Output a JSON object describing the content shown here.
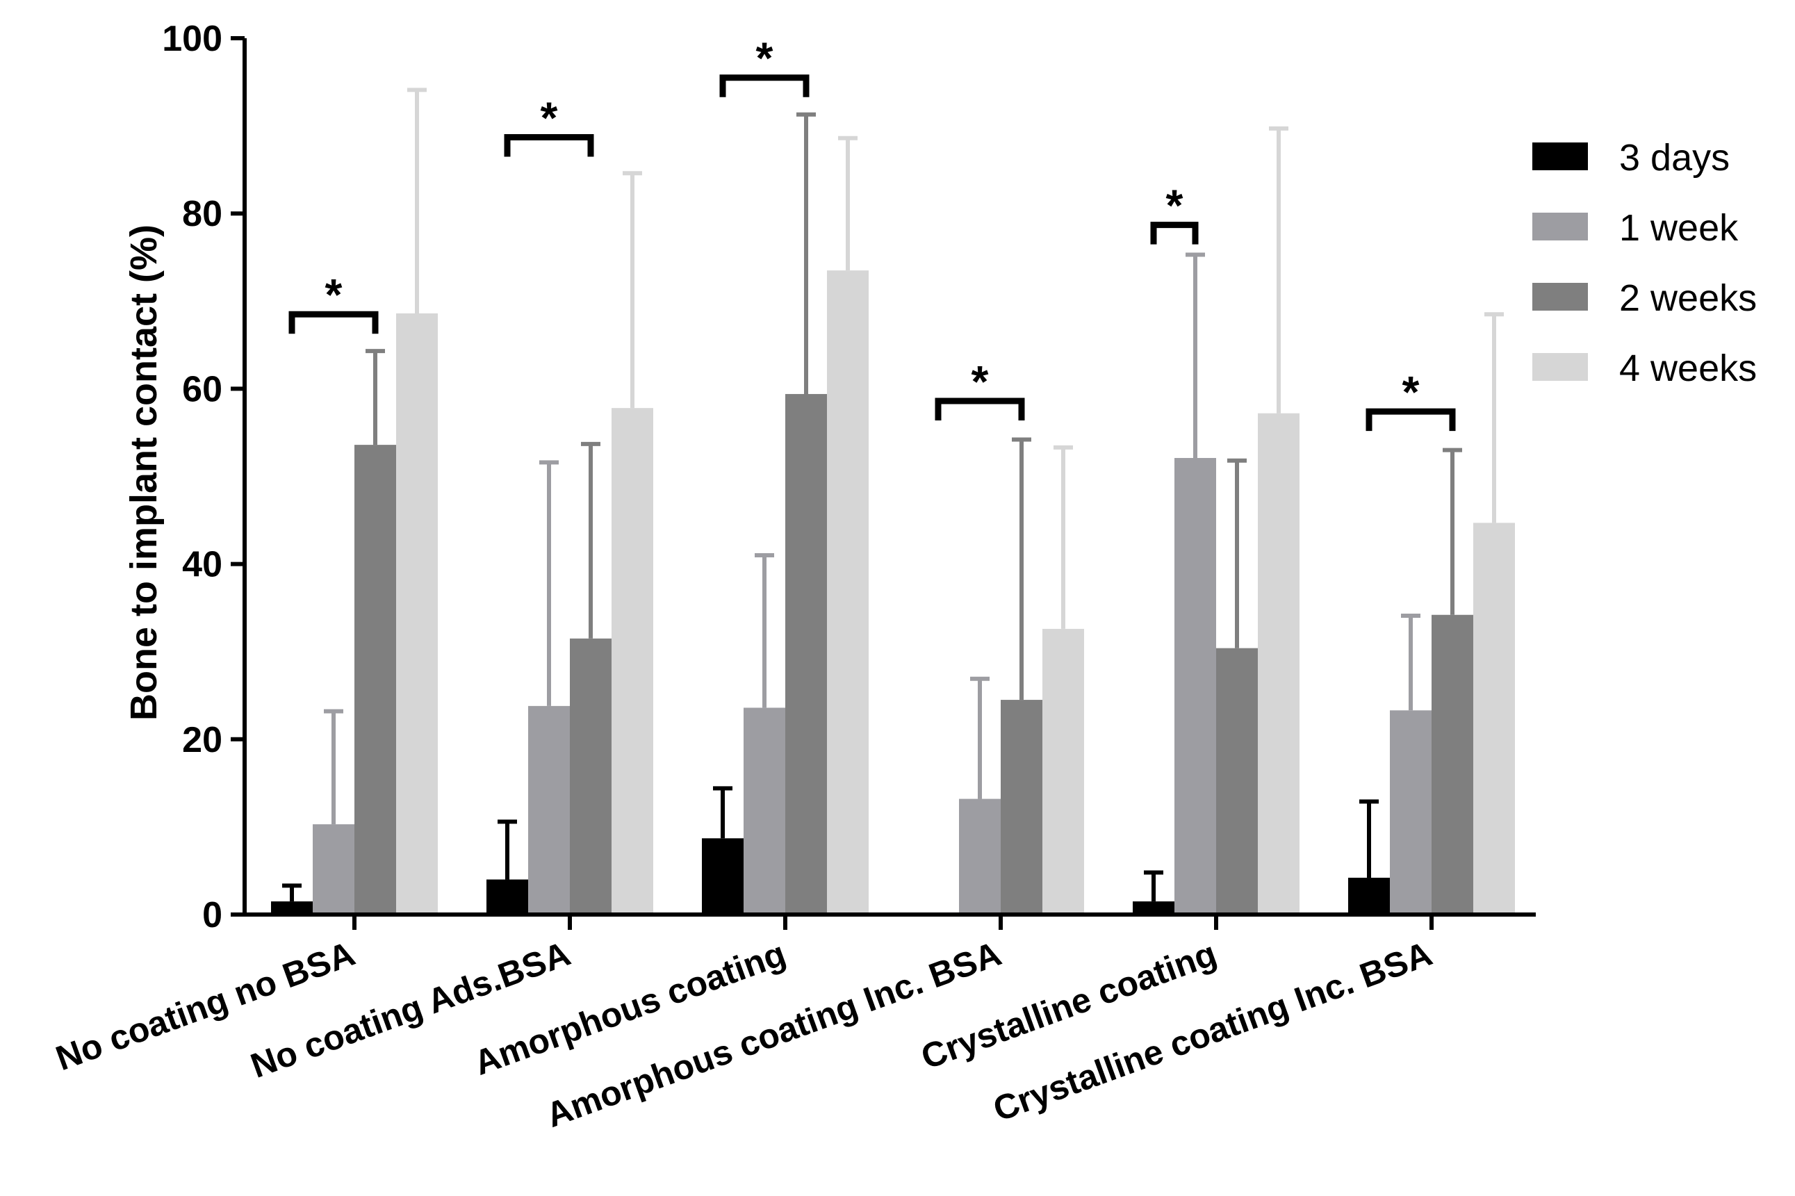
{
  "chart_data": {
    "type": "bar",
    "title": "",
    "xlabel": "",
    "ylabel": "Bone to implant contact (%)",
    "ylim": [
      0,
      100
    ],
    "yticks": [
      "0",
      "20",
      "40",
      "60",
      "80",
      "100"
    ],
    "grid": false,
    "legend_position": "right",
    "categories": [
      "No coating no BSA",
      "No coating Ads.BSA",
      "Amorphous coating",
      "Amorphous coating Inc. BSA",
      "Crystalline coating",
      "Crystalline coating Inc. BSA"
    ],
    "series": [
      {
        "name": "3 days",
        "color": "#000000",
        "values": [
          1.5,
          4.0,
          8.7,
          0.0,
          1.5,
          4.2
        ],
        "errors": [
          1.8,
          6.6,
          5.7,
          0.0,
          3.3,
          8.7
        ]
      },
      {
        "name": "1 week",
        "color": "#9d9da2",
        "values": [
          10.3,
          23.8,
          23.6,
          13.2,
          52.1,
          23.3
        ],
        "errors": [
          12.9,
          27.8,
          17.4,
          13.7,
          23.2,
          10.8
        ]
      },
      {
        "name": "2 weeks",
        "color": "#7f7f7f",
        "values": [
          53.6,
          31.5,
          59.4,
          24.5,
          30.4,
          34.2
        ],
        "errors": [
          10.7,
          22.2,
          31.9,
          29.7,
          21.4,
          18.8
        ]
      },
      {
        "name": "4 weeks",
        "color": "#d6d6d6",
        "values": [
          68.6,
          57.8,
          73.5,
          32.6,
          57.2,
          44.7
        ],
        "errors": [
          25.5,
          26.8,
          15.1,
          20.7,
          32.5,
          23.8
        ]
      }
    ],
    "significance": [
      {
        "category_index": 0,
        "from_series": "3 days",
        "to_series": "2 weeks",
        "level": 68.5,
        "label": "*"
      },
      {
        "category_index": 1,
        "from_series": "3 days",
        "to_series": "2 weeks",
        "level": 88.7,
        "label": "*"
      },
      {
        "category_index": 2,
        "from_series": "3 days",
        "to_series": "2 weeks",
        "level": 95.5,
        "label": "*"
      },
      {
        "category_index": 3,
        "from_series": "3 days",
        "to_series": "2 weeks",
        "level": 58.6,
        "label": "*"
      },
      {
        "category_index": 4,
        "from_series": "3 days",
        "to_series": "1 week",
        "level": 78.7,
        "label": "*"
      },
      {
        "category_index": 5,
        "from_series": "3 days",
        "to_series": "2 weeks",
        "level": 57.4,
        "label": "*"
      }
    ]
  }
}
